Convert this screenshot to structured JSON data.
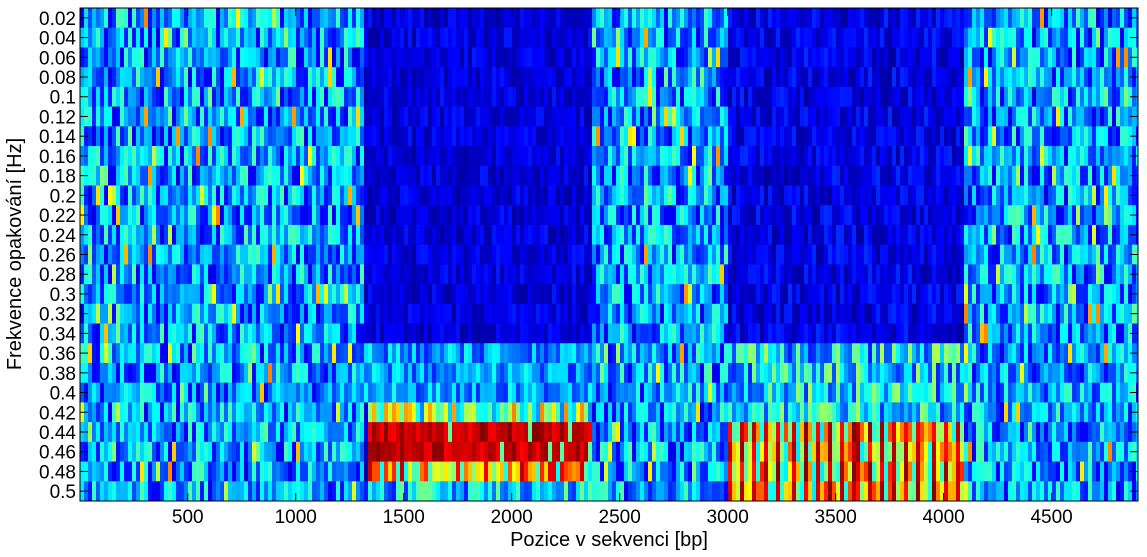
{
  "chart_data": {
    "type": "heatmap",
    "title": "",
    "xlabel": "Pozice v sekvenci [bp]",
    "ylabel": "Frekvence opakování [Hz]",
    "x_ticks": [
      500,
      1000,
      1500,
      2000,
      2500,
      3000,
      3500,
      4000,
      4500
    ],
    "y_ticks": [
      "0.02",
      "0.04",
      "0.06",
      "0.08",
      "0.1",
      "0.12",
      "0.14",
      "0.16",
      "0.18",
      "0.2",
      "0.22",
      "0.24",
      "0.26",
      "0.28",
      "0.3",
      "0.32",
      "0.34",
      "0.36",
      "0.38",
      "0.4",
      "0.42",
      "0.44",
      "0.46",
      "0.48",
      "0.5"
    ],
    "xlim": [
      1,
      4900
    ],
    "ylim": [
      0.01,
      0.51
    ],
    "y_reversed": true,
    "colormap": "jet",
    "value_range": [
      0,
      1
    ],
    "grid": false,
    "regions": [
      {
        "x": [
          1,
          1300
        ],
        "y": [
          0.02,
          0.5
        ],
        "level": "medium, noisy"
      },
      {
        "x": [
          1300,
          2370
        ],
        "y": [
          0.02,
          0.4
        ],
        "level": "low"
      },
      {
        "x": [
          1330,
          2370
        ],
        "y": [
          0.42,
          0.48
        ],
        "level": "high"
      },
      {
        "x": [
          2370,
          3000
        ],
        "y": [
          0.02,
          0.5
        ],
        "level": "medium, noisy"
      },
      {
        "x": [
          3000,
          4080
        ],
        "y": [
          0.02,
          0.34
        ],
        "level": "low"
      },
      {
        "x": [
          3000,
          4080
        ],
        "y": [
          0.36,
          0.5
        ],
        "level": "medium"
      },
      {
        "x": [
          3000,
          4080
        ],
        "y": [
          0.44,
          0.5
        ],
        "level": "high, banded"
      },
      {
        "x": [
          4080,
          4900
        ],
        "y": [
          0.02,
          0.5
        ],
        "level": "medium, noisy"
      }
    ]
  }
}
